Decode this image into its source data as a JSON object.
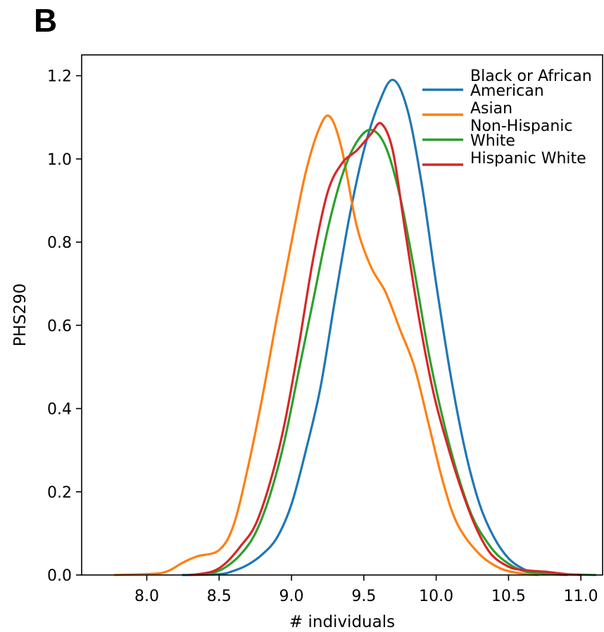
{
  "panel_label": "B",
  "chart_data": {
    "type": "line",
    "title": "",
    "xlabel": "# individuals",
    "ylabel": "PHS290",
    "xlim": [
      7.55,
      11.15
    ],
    "ylim": [
      0,
      1.25
    ],
    "xticks": [
      "8.0",
      "8.5",
      "9.0",
      "9.5",
      "10.0",
      "10.5",
      "11.0"
    ],
    "yticks": [
      "0.0",
      "0.2",
      "0.4",
      "0.6",
      "0.8",
      "1.0",
      "1.2"
    ],
    "grid": false,
    "legend_position": "top-right",
    "series": [
      {
        "name": [
          "Black or African",
          "American"
        ],
        "color": "#1f77b4",
        "points": [
          [
            8.25,
            0.0
          ],
          [
            8.5,
            0.002
          ],
          [
            8.6,
            0.01
          ],
          [
            8.7,
            0.025
          ],
          [
            8.8,
            0.05
          ],
          [
            8.9,
            0.09
          ],
          [
            9.0,
            0.17
          ],
          [
            9.1,
            0.3
          ],
          [
            9.2,
            0.45
          ],
          [
            9.3,
            0.66
          ],
          [
            9.4,
            0.86
          ],
          [
            9.5,
            1.02
          ],
          [
            9.6,
            1.13
          ],
          [
            9.7,
            1.19
          ],
          [
            9.8,
            1.12
          ],
          [
            9.9,
            0.94
          ],
          [
            10.0,
            0.7
          ],
          [
            10.1,
            0.48
          ],
          [
            10.2,
            0.3
          ],
          [
            10.3,
            0.17
          ],
          [
            10.4,
            0.09
          ],
          [
            10.5,
            0.04
          ],
          [
            10.6,
            0.015
          ],
          [
            10.7,
            0.005
          ],
          [
            10.9,
            0.0
          ]
        ]
      },
      {
        "name": "Asian",
        "color": "#ff7f0e",
        "points": [
          [
            7.78,
            0.0
          ],
          [
            8.05,
            0.003
          ],
          [
            8.15,
            0.01
          ],
          [
            8.25,
            0.03
          ],
          [
            8.35,
            0.045
          ],
          [
            8.5,
            0.06
          ],
          [
            8.6,
            0.12
          ],
          [
            8.7,
            0.26
          ],
          [
            8.8,
            0.43
          ],
          [
            8.9,
            0.62
          ],
          [
            9.0,
            0.8
          ],
          [
            9.1,
            0.97
          ],
          [
            9.2,
            1.08
          ],
          [
            9.27,
            1.1
          ],
          [
            9.35,
            1.02
          ],
          [
            9.45,
            0.84
          ],
          [
            9.55,
            0.74
          ],
          [
            9.65,
            0.68
          ],
          [
            9.75,
            0.59
          ],
          [
            9.85,
            0.5
          ],
          [
            9.95,
            0.36
          ],
          [
            10.05,
            0.22
          ],
          [
            10.15,
            0.12
          ],
          [
            10.3,
            0.05
          ],
          [
            10.45,
            0.015
          ],
          [
            10.6,
            0.003
          ],
          [
            10.7,
            0.0
          ]
        ]
      },
      {
        "name": [
          "Non-Hispanic",
          "White"
        ],
        "color": "#2ca02c",
        "points": [
          [
            8.3,
            0.0
          ],
          [
            8.45,
            0.005
          ],
          [
            8.55,
            0.02
          ],
          [
            8.65,
            0.05
          ],
          [
            8.75,
            0.1
          ],
          [
            8.85,
            0.19
          ],
          [
            8.95,
            0.32
          ],
          [
            9.05,
            0.49
          ],
          [
            9.15,
            0.66
          ],
          [
            9.25,
            0.83
          ],
          [
            9.35,
            0.96
          ],
          [
            9.45,
            1.04
          ],
          [
            9.55,
            1.07
          ],
          [
            9.65,
            1.03
          ],
          [
            9.75,
            0.91
          ],
          [
            9.85,
            0.73
          ],
          [
            9.95,
            0.53
          ],
          [
            10.05,
            0.37
          ],
          [
            10.15,
            0.24
          ],
          [
            10.25,
            0.14
          ],
          [
            10.35,
            0.08
          ],
          [
            10.45,
            0.04
          ],
          [
            10.6,
            0.01
          ],
          [
            10.8,
            0.003
          ],
          [
            11.1,
            0.0
          ]
        ]
      },
      {
        "name": "Hispanic White",
        "color": "#d62728",
        "points": [
          [
            8.3,
            0.0
          ],
          [
            8.45,
            0.008
          ],
          [
            8.55,
            0.03
          ],
          [
            8.65,
            0.07
          ],
          [
            8.75,
            0.12
          ],
          [
            8.85,
            0.22
          ],
          [
            8.95,
            0.36
          ],
          [
            9.05,
            0.55
          ],
          [
            9.15,
            0.76
          ],
          [
            9.25,
            0.92
          ],
          [
            9.35,
            0.99
          ],
          [
            9.45,
            1.02
          ],
          [
            9.55,
            1.06
          ],
          [
            9.62,
            1.085
          ],
          [
            9.7,
            1.02
          ],
          [
            9.78,
            0.84
          ],
          [
            9.88,
            0.62
          ],
          [
            9.98,
            0.44
          ],
          [
            10.08,
            0.31
          ],
          [
            10.18,
            0.2
          ],
          [
            10.28,
            0.11
          ],
          [
            10.38,
            0.05
          ],
          [
            10.5,
            0.02
          ],
          [
            10.6,
            0.012
          ],
          [
            10.75,
            0.008
          ],
          [
            10.9,
            0.002
          ],
          [
            11.0,
            0.0
          ]
        ]
      }
    ]
  }
}
